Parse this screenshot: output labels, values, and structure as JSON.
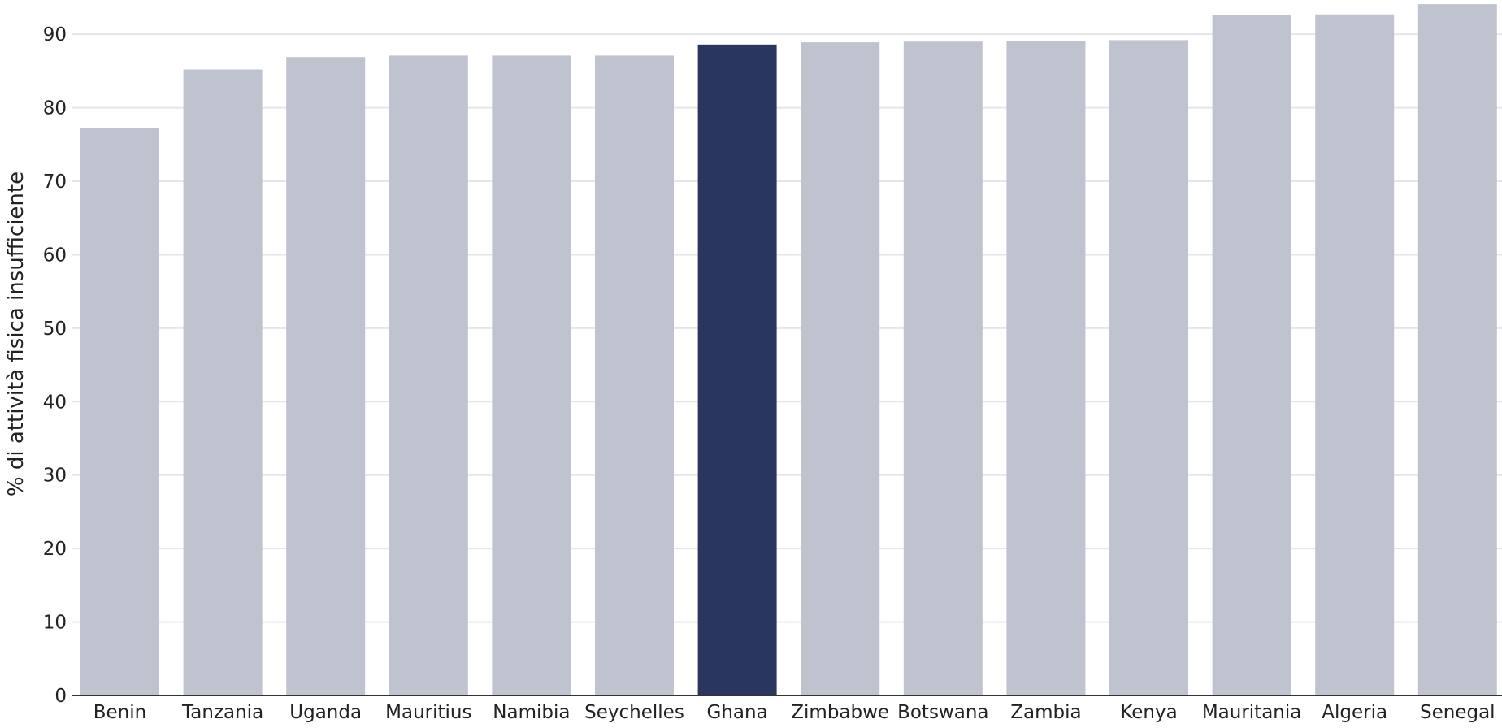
{
  "chart_data": {
    "type": "bar",
    "title": "",
    "xlabel": "",
    "ylabel": "% di attività fisica insufficiente",
    "categories": [
      "Benin",
      "Tanzania",
      "Uganda",
      "Mauritius",
      "Namibia",
      "Seychelles",
      "Ghana",
      "Zimbabwe",
      "Botswana",
      "Zambia",
      "Kenya",
      "Mauritania",
      "Algeria",
      "Senegal"
    ],
    "values": [
      77.2,
      85.2,
      86.9,
      87.1,
      87.1,
      87.1,
      88.6,
      88.9,
      89.0,
      89.1,
      89.2,
      92.6,
      92.7,
      94.1
    ],
    "highlight": "Ghana",
    "ylim": [
      0,
      94
    ],
    "yticks": [
      0,
      10,
      20,
      30,
      40,
      50,
      60,
      70,
      80,
      90
    ],
    "grid": true,
    "colors": {
      "bar": "#bfc2cf",
      "highlight": "#29365f",
      "grid": "#e6e6ea",
      "axis": "#333333",
      "text": "#222222"
    }
  }
}
